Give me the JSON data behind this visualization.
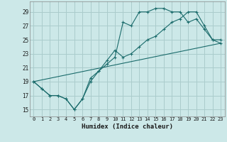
{
  "title": "",
  "xlabel": "Humidex (Indice chaleur)",
  "bg_color": "#cce8e8",
  "grid_color": "#aacccc",
  "line_color": "#1a6b6b",
  "xlim": [
    -0.5,
    23.5
  ],
  "ylim": [
    14.0,
    30.5
  ],
  "xticks": [
    0,
    1,
    2,
    3,
    4,
    5,
    6,
    7,
    8,
    9,
    10,
    11,
    12,
    13,
    14,
    15,
    16,
    17,
    18,
    19,
    20,
    21,
    22,
    23
  ],
  "yticks": [
    15,
    17,
    19,
    21,
    23,
    25,
    27,
    29
  ],
  "line1_x": [
    0,
    1,
    2,
    3,
    4,
    5,
    6,
    7,
    8,
    9,
    10,
    11,
    12,
    13,
    14,
    15,
    16,
    17,
    18,
    19,
    20,
    21,
    22,
    23
  ],
  "line1_y": [
    19,
    18,
    17,
    17,
    16.5,
    15,
    16.5,
    19,
    20.5,
    21.5,
    22.5,
    27.5,
    27,
    29,
    29,
    29.5,
    29.5,
    29,
    29,
    27.5,
    28,
    26.5,
    25,
    25
  ],
  "line2_x": [
    0,
    1,
    2,
    3,
    4,
    5,
    6,
    7,
    8,
    9,
    10,
    11,
    12,
    13,
    14,
    15,
    16,
    17,
    18,
    19,
    20,
    21,
    22,
    23
  ],
  "line2_y": [
    19,
    18,
    17,
    17,
    16.5,
    15,
    16.5,
    19.5,
    20.5,
    22,
    23.5,
    22.5,
    23,
    24,
    25,
    25.5,
    26.5,
    27.5,
    28,
    29,
    29,
    27,
    25,
    24.5
  ],
  "line3_x": [
    0,
    23
  ],
  "line3_y": [
    19,
    24.5
  ]
}
